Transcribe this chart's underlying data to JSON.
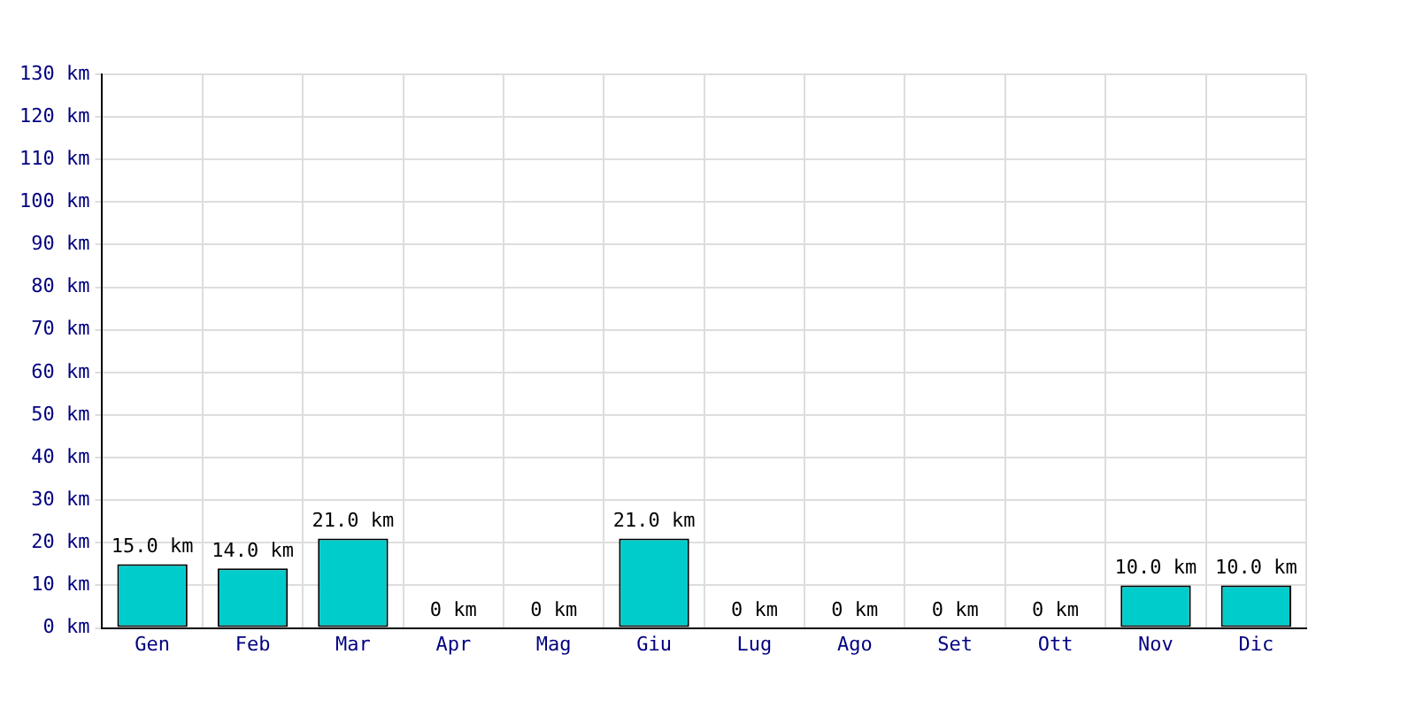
{
  "chart_data": {
    "type": "bar",
    "categories": [
      "Gen",
      "Feb",
      "Mar",
      "Apr",
      "Mag",
      "Giu",
      "Lug",
      "Ago",
      "Set",
      "Ott",
      "Nov",
      "Dic"
    ],
    "values": [
      15,
      14,
      21,
      0,
      0,
      21,
      0,
      0,
      0,
      0,
      10,
      10
    ],
    "value_labels": [
      "15.0 km",
      "14.0 km",
      "21.0 km",
      "0 km",
      "0 km",
      "21.0 km",
      "0 km",
      "0 km",
      "0 km",
      "0 km",
      "10.0 km",
      "10.0 km"
    ],
    "color": "#00cccc",
    "ylim": [
      0,
      130
    ],
    "yticks": [
      {
        "value": 0,
        "label": "0 km"
      },
      {
        "value": 10,
        "label": "10 km"
      },
      {
        "value": 20,
        "label": "20 km"
      },
      {
        "value": 30,
        "label": "30 km"
      },
      {
        "value": 40,
        "label": "40 km"
      },
      {
        "value": 50,
        "label": "50 km"
      },
      {
        "value": 60,
        "label": "60 km"
      },
      {
        "value": 70,
        "label": "70 km"
      },
      {
        "value": 80,
        "label": "80 km"
      },
      {
        "value": 90,
        "label": "90 km"
      },
      {
        "value": 100,
        "label": "100 km"
      },
      {
        "value": 110,
        "label": "110 km"
      },
      {
        "value": 120,
        "label": "120 km"
      },
      {
        "value": 130,
        "label": "130 km"
      }
    ],
    "grid": true
  }
}
